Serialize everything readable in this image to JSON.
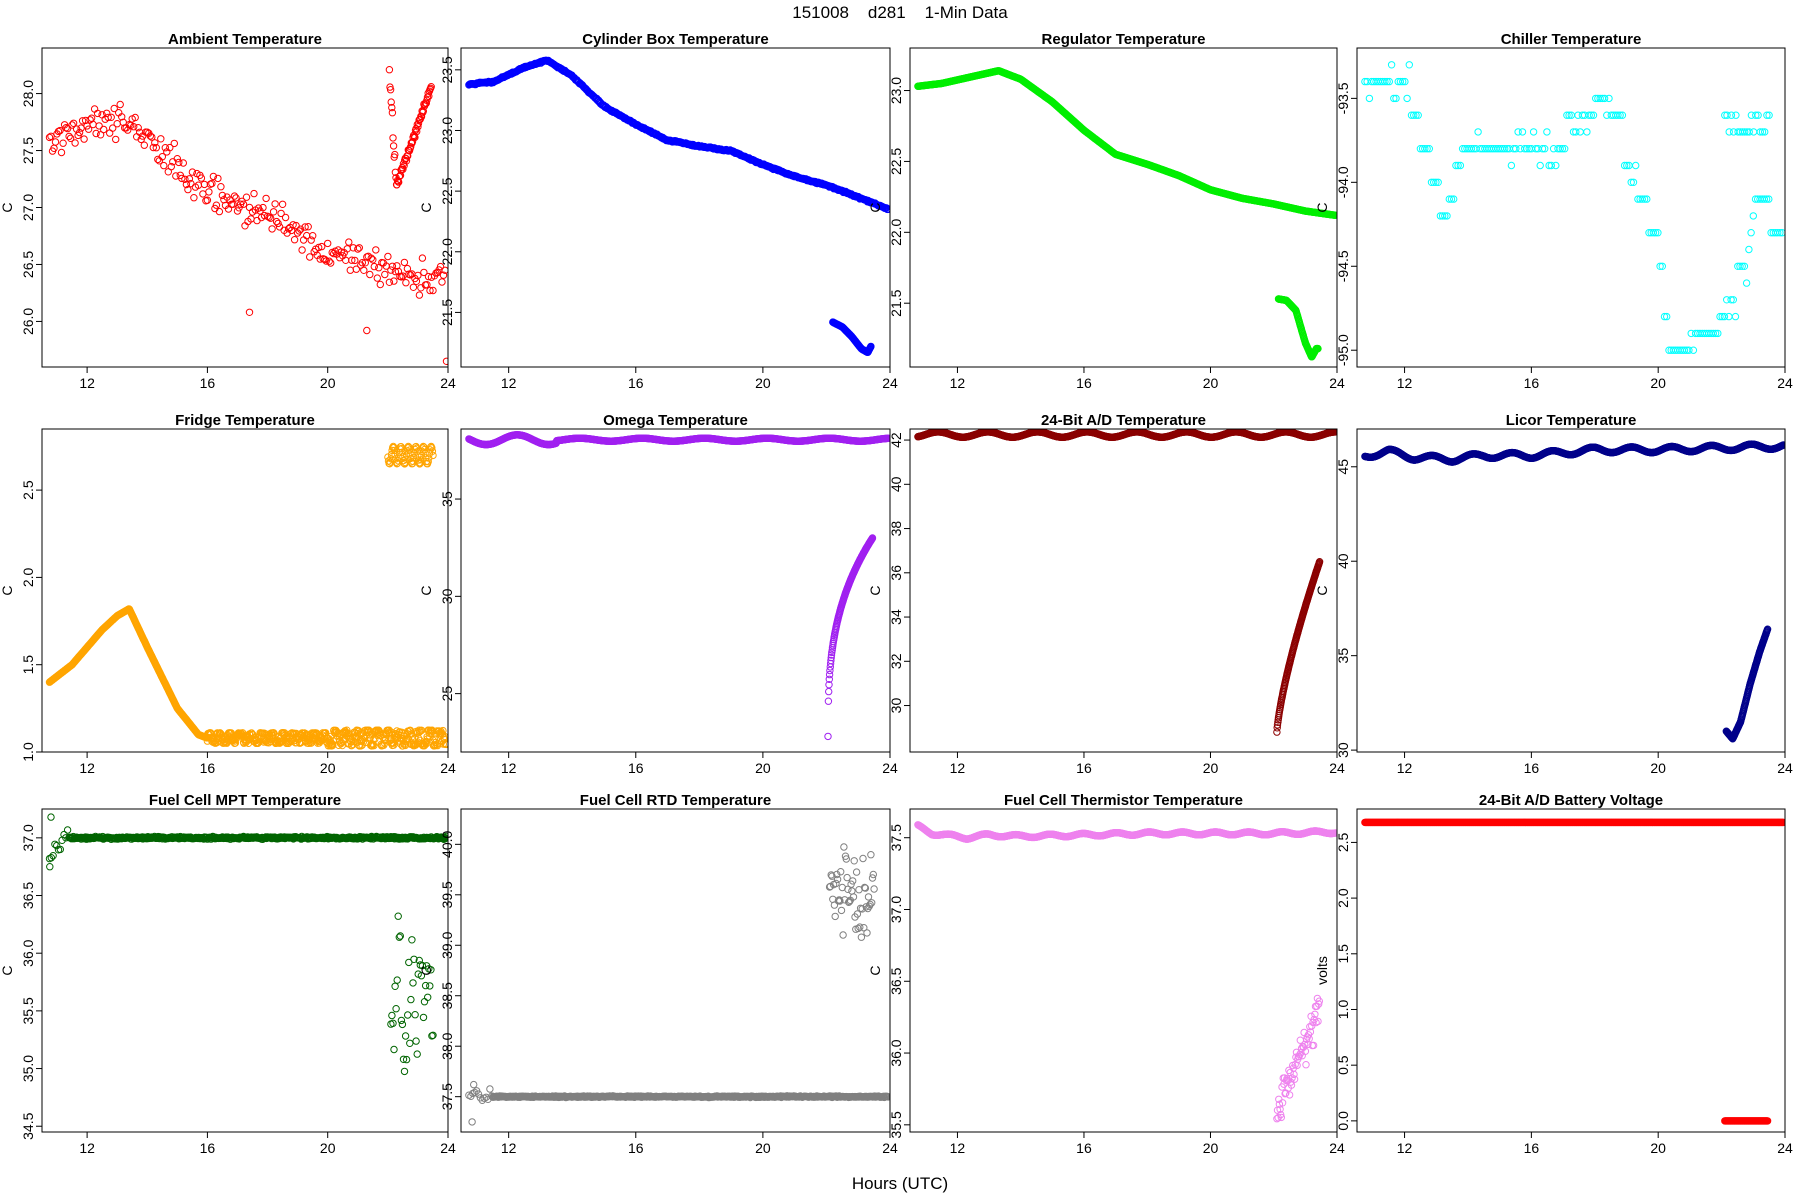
{
  "figure": {
    "title": "151008    d281    1-Min Data",
    "xlabel": "Hours (UTC)"
  },
  "chart_data": [
    {
      "type": "scatter",
      "title": "Ambient Temperature",
      "color": "#ff0000",
      "xlim": [
        10.5,
        24
      ],
      "ylim": [
        25.6,
        28.4
      ],
      "xticks": [
        12,
        16,
        20,
        24
      ],
      "yticks": [
        26.0,
        26.5,
        27.0,
        27.5,
        28.0
      ],
      "ylabel": "C",
      "gen": "ambient"
    },
    {
      "type": "scatter",
      "title": "Cylinder Box Temperature",
      "color": "#0000ff",
      "xlim": [
        10.5,
        24
      ],
      "ylim": [
        21.05,
        23.68
      ],
      "xticks": [
        12,
        16,
        20,
        24
      ],
      "yticks": [
        21.5,
        22.0,
        22.5,
        23.0,
        23.5
      ],
      "ylabel": "C",
      "gen": "cylinder"
    },
    {
      "type": "scatter",
      "title": "Regulator Temperature",
      "color": "#00ee00",
      "xlim": [
        10.5,
        24
      ],
      "ylim": [
        21.05,
        23.3
      ],
      "xticks": [
        12,
        16,
        20,
        24
      ],
      "yticks": [
        21.5,
        22.0,
        22.5,
        23.0
      ],
      "ylabel": "C",
      "gen": "regulator"
    },
    {
      "type": "scatter",
      "title": "Chiller Temperature",
      "color": "#00ffff",
      "xlim": [
        10.5,
        24
      ],
      "ylim": [
        -95.1,
        -93.2
      ],
      "xticks": [
        12,
        16,
        20,
        24
      ],
      "yticks": [
        -95.0,
        -94.5,
        -94.0,
        -93.5
      ],
      "ylabel": "C",
      "gen": "chiller"
    },
    {
      "type": "scatter",
      "title": "Fridge Temperature",
      "color": "#ffa500",
      "xlim": [
        10.5,
        24
      ],
      "ylim": [
        1.0,
        2.85
      ],
      "xticks": [
        12,
        16,
        20,
        24
      ],
      "yticks": [
        1.0,
        1.5,
        2.0,
        2.5
      ],
      "ylabel": "C",
      "gen": "fridge"
    },
    {
      "type": "scatter",
      "title": "Omega Temperature",
      "color": "#a020f0",
      "xlim": [
        10.5,
        24
      ],
      "ylim": [
        22.0,
        38.6
      ],
      "xticks": [
        12,
        16,
        20,
        24
      ],
      "yticks": [
        25,
        30,
        35
      ],
      "ylabel": "C",
      "gen": "omega"
    },
    {
      "type": "scatter",
      "title": "24-Bit A/D Temperature",
      "color": "#8b0000",
      "xlim": [
        10.5,
        24
      ],
      "ylim": [
        27.9,
        42.5
      ],
      "xticks": [
        12,
        16,
        20,
        24
      ],
      "yticks": [
        30,
        32,
        34,
        36,
        38,
        40,
        42
      ],
      "ylabel": "C",
      "gen": "ad24temp"
    },
    {
      "type": "scatter",
      "title": "Licor Temperature",
      "color": "#00008b",
      "xlim": [
        10.5,
        24
      ],
      "ylim": [
        29.9,
        47.0
      ],
      "xticks": [
        12,
        16,
        20,
        24
      ],
      "yticks": [
        30,
        35,
        40,
        45
      ],
      "ylabel": "C",
      "gen": "licor"
    },
    {
      "type": "scatter",
      "title": "Fuel Cell MPT Temperature",
      "color": "#006400",
      "xlim": [
        10.5,
        24
      ],
      "ylim": [
        34.45,
        37.25
      ],
      "xticks": [
        12,
        16,
        20,
        24
      ],
      "yticks": [
        34.5,
        35.0,
        35.5,
        36.0,
        36.5,
        37.0
      ],
      "ylabel": "C",
      "gen": "mpt"
    },
    {
      "type": "scatter",
      "title": "Fuel Cell RTD Temperature",
      "color": "#808080",
      "xlim": [
        10.5,
        24
      ],
      "ylim": [
        37.15,
        40.35
      ],
      "xticks": [
        12,
        16,
        20,
        24
      ],
      "yticks": [
        37.5,
        38.0,
        38.5,
        39.0,
        39.5,
        40.0
      ],
      "ylabel": "C",
      "gen": "rtd"
    },
    {
      "type": "scatter",
      "title": "Fuel Cell Thermistor Temperature",
      "color": "#ee82ee",
      "xlim": [
        10.5,
        24
      ],
      "ylim": [
        35.45,
        37.7
      ],
      "xticks": [
        12,
        16,
        20,
        24
      ],
      "yticks": [
        35.5,
        36.0,
        36.5,
        37.0,
        37.5
      ],
      "ylabel": "C",
      "gen": "thermistor"
    },
    {
      "type": "scatter",
      "title": "24-Bit A/D Battery Voltage",
      "color": "#ff0000",
      "xlim": [
        10.5,
        24
      ],
      "ylim": [
        -0.1,
        2.8
      ],
      "xticks": [
        12,
        16,
        20,
        24
      ],
      "yticks": [
        0.0,
        0.5,
        1.0,
        1.5,
        2.0,
        2.5
      ],
      "ylabel": "volts",
      "gen": "battery"
    }
  ]
}
